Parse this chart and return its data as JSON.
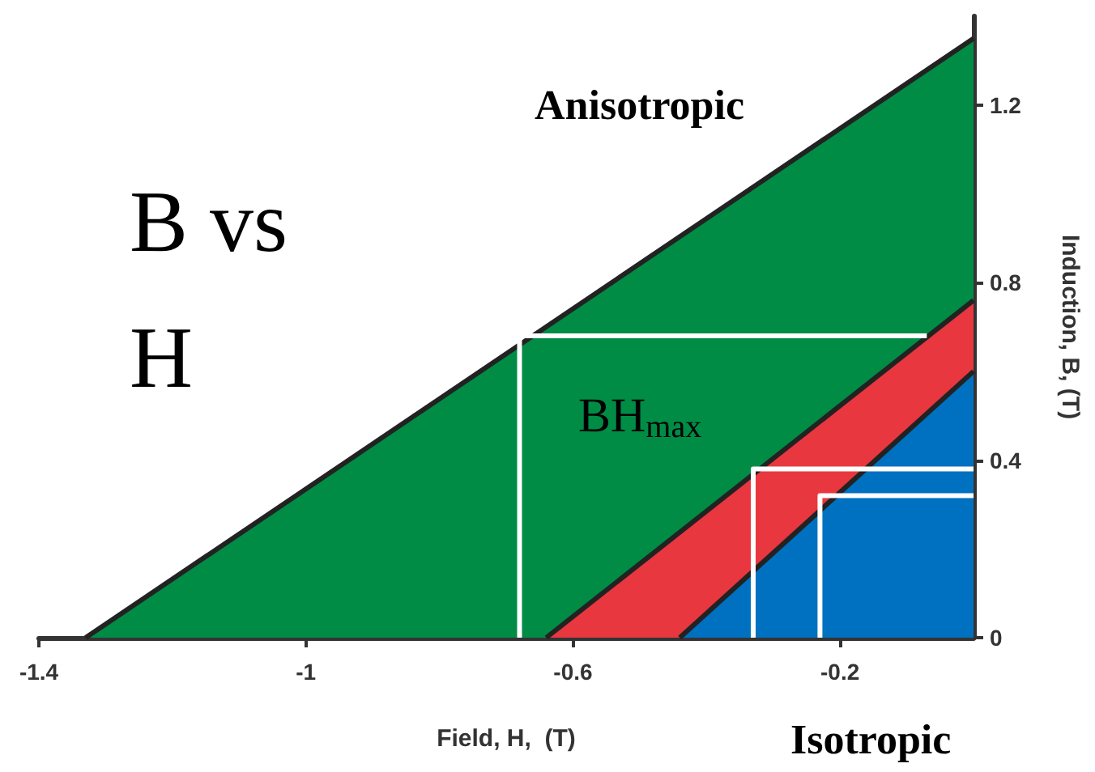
{
  "chart_data": {
    "type": "area",
    "title": "B vs H",
    "xlabel": "Field, H,  (T)",
    "ylabel": "Induction, B, (T)",
    "xlim": [
      -1.4,
      0
    ],
    "xticks": [
      -1.4,
      -1,
      -0.6,
      -0.2
    ],
    "ylim": [
      0,
      1.4
    ],
    "yticks": [
      0,
      0.4,
      0.8,
      1.2
    ],
    "grid": false,
    "marker": "none",
    "line_style": "solid",
    "series": [
      {
        "type": "area",
        "color": "#008c45",
        "x": [
          -1.33,
          0
        ],
        "values": [
          0,
          1.35
        ]
      },
      {
        "type": "line",
        "color": "#ffffff",
        "x": [
          -0.68,
          -0.68,
          -0.07
        ],
        "values": [
          0,
          0.68,
          0.68
        ]
      },
      {
        "type": "area",
        "color": "#e8373f",
        "x": [
          -0.64,
          0
        ],
        "values": [
          0,
          0.76
        ]
      },
      {
        "type": "line",
        "color": "#ffffff",
        "x": [
          -0.33,
          -0.33,
          0
        ],
        "values": [
          0,
          0.38,
          0.38
        ]
      },
      {
        "type": "area",
        "color": "#0070c0",
        "x": [
          -0.44,
          0
        ],
        "values": [
          0,
          0.6
        ]
      },
      {
        "type": "line",
        "color": "#ffffff",
        "x": [
          -0.23,
          -0.23,
          0
        ],
        "values": [
          0,
          0.32,
          0.32
        ]
      }
    ],
    "annotations": [
      "Anisotropic",
      "BH$_{max}$",
      "Isotropic"
    ]
  }
}
